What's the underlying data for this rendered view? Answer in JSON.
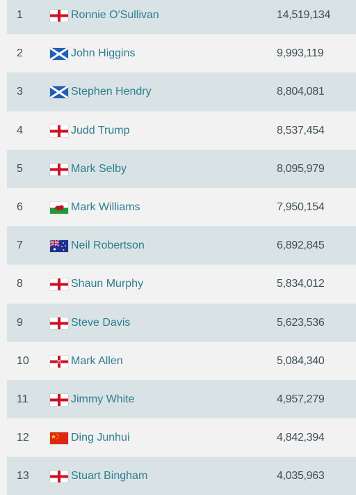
{
  "players": [
    {
      "rank": "1",
      "name": "Ronnie O'Sullivan",
      "earnings": "14,519,134",
      "country": "england-flag-icon"
    },
    {
      "rank": "2",
      "name": "John Higgins",
      "earnings": "9,993,119",
      "country": "scotland-flag-icon"
    },
    {
      "rank": "3",
      "name": "Stephen Hendry",
      "earnings": "8,804,081",
      "country": "scotland-flag-icon"
    },
    {
      "rank": "4",
      "name": "Judd Trump",
      "earnings": "8,537,454",
      "country": "england-flag-icon"
    },
    {
      "rank": "5",
      "name": "Mark Selby",
      "earnings": "8,095,979",
      "country": "england-flag-icon"
    },
    {
      "rank": "6",
      "name": "Mark Williams",
      "earnings": "7,950,154",
      "country": "wales-flag-icon"
    },
    {
      "rank": "7",
      "name": "Neil Robertson",
      "earnings": "6,892,845",
      "country": "australia-flag-icon"
    },
    {
      "rank": "8",
      "name": "Shaun Murphy",
      "earnings": "5,834,012",
      "country": "england-flag-icon"
    },
    {
      "rank": "9",
      "name": "Steve Davis",
      "earnings": "5,623,536",
      "country": "england-flag-icon"
    },
    {
      "rank": "10",
      "name": "Mark Allen",
      "earnings": "5,084,340",
      "country": "northern-ireland-flag-icon"
    },
    {
      "rank": "11",
      "name": "Jimmy White",
      "earnings": "4,957,279",
      "country": "england-flag-icon"
    },
    {
      "rank": "12",
      "name": "Ding Junhui",
      "earnings": "4,842,394",
      "country": "china-flag-icon"
    },
    {
      "rank": "13",
      "name": "Stuart Bingham",
      "earnings": "4,035,963",
      "country": "england-flag-icon"
    }
  ],
  "colors": {
    "row_shade": "#d9e3e5",
    "row_plain": "#f2f2f2",
    "name_link": "#2e7d90",
    "text": "#3f4f57"
  }
}
